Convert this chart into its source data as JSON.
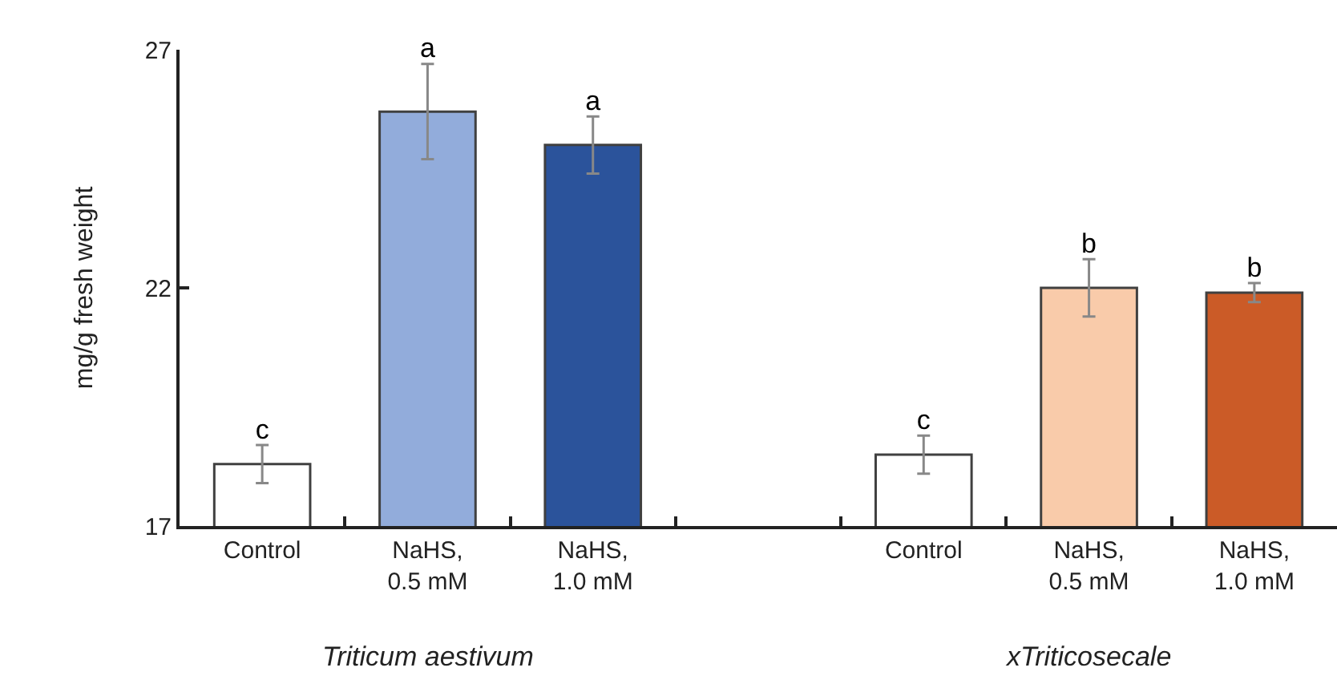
{
  "chart_data": {
    "type": "bar",
    "ylabel": "mg/g fresh weight",
    "categories": [
      "Control",
      "NaHS,\n0.5 mM",
      "NaHS,\n1.0 mM",
      null,
      "Control",
      "NaHS,\n0.5 mM",
      "NaHS,\n1.0 mM"
    ],
    "values": [
      18.3,
      25.7,
      25.0,
      null,
      18.5,
      22.0,
      21.9
    ],
    "errors": [
      0.4,
      1.0,
      0.6,
      null,
      0.4,
      0.6,
      0.2
    ],
    "colors": [
      "#ffffff",
      "#92acdb",
      "#2b539b",
      "#ffffff",
      "#ffffff",
      "#f9cbaa",
      "#cb5b27"
    ],
    "value_labels": [
      "c",
      "a",
      "a",
      null,
      "c",
      "b",
      "b"
    ],
    "ylim": [
      17,
      27
    ],
    "yticks": [
      17,
      22,
      27
    ],
    "annotations": [
      "Triticum aestivum",
      "xTriticosecale"
    ]
  }
}
